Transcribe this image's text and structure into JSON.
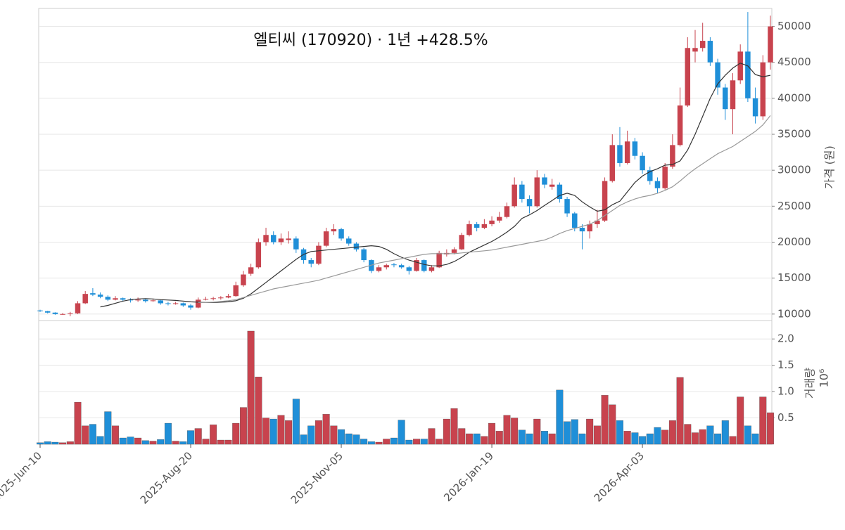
{
  "chart_data": {
    "type": "candlestick",
    "title": "엘티씨 (170920) · 1년 +428.5%",
    "ylabel": "가격 (원)",
    "grid": true,
    "up_color": "#c8434e",
    "down_color": "#1f8fd8",
    "categories": [
      "2025-Jun-10",
      null,
      null,
      null,
      null,
      null,
      null,
      null,
      null,
      null,
      null,
      null,
      null,
      null,
      null,
      null,
      null,
      null,
      null,
      null,
      "2025-Aug-20",
      null,
      null,
      null,
      null,
      null,
      null,
      null,
      null,
      null,
      null,
      null,
      null,
      null,
      null,
      null,
      null,
      null,
      null,
      null,
      "2025-Nov-05",
      null,
      null,
      null,
      null,
      null,
      null,
      null,
      null,
      null,
      null,
      null,
      null,
      null,
      null,
      null,
      null,
      null,
      null,
      null,
      "2026-Jan-19",
      null,
      null,
      null,
      null,
      null,
      null,
      null,
      null,
      null,
      null,
      null,
      null,
      null,
      null,
      null,
      null,
      null,
      null,
      null,
      "2026-Apr-03",
      null,
      null,
      null,
      null,
      null,
      null,
      null,
      null,
      null,
      null,
      null,
      null,
      null,
      null,
      null,
      null,
      null
    ],
    "open": [
      10500,
      10400,
      10200,
      10000,
      10000,
      10100,
      11500,
      12900,
      12700,
      12400,
      12000,
      12200,
      12000,
      11900,
      12000,
      11800,
      11900,
      11500,
      11400,
      11500,
      11200,
      10900,
      12000,
      12100,
      12200,
      12300,
      12500,
      14000,
      15600,
      16500,
      20000,
      21000,
      20000,
      20300,
      20500,
      19000,
      17500,
      17000,
      19500,
      21500,
      21800,
      20500,
      19800,
      19000,
      17500,
      16000,
      16500,
      16900,
      16800,
      16500,
      16000,
      17500,
      16000,
      16500,
      18300,
      18500,
      19000,
      21000,
      22500,
      22000,
      22500,
      23000,
      23500,
      25000,
      28000,
      26000,
      25000,
      29000,
      27700,
      28000,
      26000,
      24000,
      22000,
      21500,
      22500,
      23000,
      28500,
      33500,
      31000,
      34000,
      32000,
      30000,
      28500,
      27500,
      30500,
      33500,
      39000,
      46500,
      47000,
      48000,
      45000,
      41500,
      38500,
      42500,
      46500,
      40000,
      37500,
      45000
    ],
    "high": [
      10600,
      10450,
      10250,
      10150,
      10300,
      11800,
      13200,
      13600,
      13000,
      12600,
      12500,
      12300,
      12200,
      12300,
      12100,
      12100,
      12000,
      11700,
      11700,
      11600,
      11400,
      12300,
      12400,
      12400,
      12500,
      12800,
      14500,
      16000,
      17000,
      20500,
      22000,
      21500,
      21200,
      21500,
      20800,
      19200,
      17800,
      20000,
      22000,
      22500,
      22000,
      20800,
      20000,
      19200,
      17600,
      16800,
      17000,
      17100,
      17000,
      16700,
      17800,
      17600,
      16800,
      18800,
      19000,
      19300,
      21300,
      23000,
      22800,
      23200,
      23600,
      24200,
      25500,
      29000,
      28500,
      26500,
      30000,
      29500,
      28800,
      28300,
      26300,
      24200,
      22500,
      23000,
      24500,
      29000,
      35000,
      36000,
      35500,
      34500,
      32500,
      30500,
      29000,
      31000,
      35000,
      41500,
      48500,
      49500,
      50500,
      48500,
      45500,
      42000,
      43500,
      47500,
      52000,
      41500,
      46000,
      51500
    ],
    "low": [
      10300,
      10100,
      9900,
      9900,
      9700,
      10000,
      11400,
      12500,
      12200,
      11800,
      11900,
      11800,
      11600,
      11700,
      11600,
      11700,
      11300,
      11200,
      11300,
      11000,
      10600,
      10800,
      11900,
      11900,
      12000,
      12200,
      12400,
      13800,
      15300,
      16300,
      19500,
      19700,
      19600,
      19800,
      18500,
      17000,
      16500,
      16800,
      19300,
      21000,
      20200,
      19500,
      18700,
      17200,
      15700,
      15800,
      16200,
      16500,
      16300,
      15500,
      15900,
      15800,
      15800,
      16400,
      18000,
      18300,
      18900,
      20800,
      21500,
      21800,
      22200,
      22700,
      23300,
      24800,
      25500,
      24000,
      24800,
      27500,
      27300,
      25500,
      23500,
      21500,
      19000,
      20500,
      22000,
      22800,
      28300,
      30500,
      30800,
      31500,
      29500,
      28000,
      26800,
      27300,
      30200,
      33300,
      38800,
      45000,
      46500,
      44500,
      40500,
      37000,
      35000,
      42000,
      39500,
      36500,
      37000,
      44000
    ],
    "close": [
      10400,
      10200,
      10000,
      10000,
      10100,
      11500,
      12800,
      12700,
      12400,
      12000,
      12200,
      12000,
      11900,
      12000,
      11800,
      11900,
      11500,
      11400,
      11500,
      11200,
      10900,
      12000,
      12100,
      12200,
      12300,
      12500,
      14000,
      15500,
      16500,
      20000,
      21000,
      20000,
      20500,
      20500,
      19000,
      17500,
      17000,
      19500,
      21500,
      21800,
      20500,
      19800,
      19000,
      17500,
      16000,
      16500,
      16800,
      16800,
      16500,
      16000,
      17500,
      16000,
      16500,
      18500,
      18500,
      19000,
      21000,
      22500,
      22000,
      22500,
      23000,
      23500,
      25000,
      28000,
      26000,
      25000,
      29000,
      28000,
      28000,
      26000,
      24000,
      22000,
      21500,
      22500,
      23000,
      28500,
      33500,
      31000,
      34000,
      32000,
      30000,
      28500,
      27500,
      30500,
      33500,
      39000,
      47000,
      47000,
      48000,
      45000,
      41500,
      38500,
      42500,
      46500,
      40000,
      37500,
      45000,
      50000
    ],
    "moving_averages": [
      {
        "color": "#333333",
        "values": [
          null,
          null,
          null,
          null,
          null,
          null,
          null,
          null,
          11000,
          11200,
          11500,
          11800,
          12000,
          12100,
          12150,
          12100,
          12000,
          11950,
          11900,
          11800,
          11700,
          11650,
          11600,
          11600,
          11650,
          11700,
          11850,
          12200,
          12800,
          13600,
          14400,
          15200,
          16000,
          16800,
          17600,
          18300,
          18700,
          18800,
          18900,
          19000,
          19100,
          19200,
          19300,
          19400,
          19500,
          19400,
          19000,
          18400,
          17900,
          17500,
          17200,
          16900,
          16700,
          16700,
          16900,
          17300,
          17900,
          18600,
          19100,
          19600,
          20100,
          20700,
          21400,
          22200,
          23300,
          23800,
          24400,
          25100,
          25800,
          26500,
          26800,
          26500,
          25600,
          24900,
          24300,
          24500,
          25200,
          25700,
          27000,
          28300,
          29200,
          29800,
          30200,
          30700,
          30800,
          31300,
          32800,
          35000,
          37500,
          40000,
          42000,
          43200,
          44200,
          44900,
          44500,
          43300,
          43000,
          43200
        ]
      },
      {
        "color": "#999999",
        "values": [
          null,
          null,
          null,
          null,
          null,
          null,
          null,
          null,
          null,
          null,
          null,
          null,
          null,
          null,
          null,
          null,
          null,
          null,
          null,
          null,
          null,
          11600,
          11600,
          11650,
          11750,
          11850,
          12000,
          12300,
          12600,
          12900,
          13200,
          13500,
          13700,
          13900,
          14100,
          14300,
          14500,
          14700,
          15000,
          15300,
          15600,
          15900,
          16200,
          16500,
          16800,
          17100,
          17300,
          17500,
          17700,
          17900,
          18100,
          18300,
          18400,
          18400,
          18400,
          18400,
          18500,
          18600,
          18700,
          18800,
          18900,
          19100,
          19300,
          19500,
          19700,
          19900,
          20100,
          20300,
          20700,
          21200,
          21600,
          21900,
          22200,
          22500,
          23000,
          23700,
          24400,
          25100,
          25600,
          26000,
          26300,
          26500,
          26800,
          27200,
          27700,
          28500,
          29400,
          30200,
          30900,
          31600,
          32300,
          32800,
          33300,
          34000,
          34700,
          35400,
          36300,
          37600
        ]
      }
    ],
    "ylim": [
      9100,
      52500
    ],
    "yticks": [
      10000,
      15000,
      20000,
      25000,
      30000,
      35000,
      40000,
      45000,
      50000
    ],
    "volume": {
      "ylabel": "거래량",
      "offset_label": "10⁶",
      "values": [
        0.03,
        0.05,
        0.04,
        0.03,
        0.05,
        0.8,
        0.35,
        0.38,
        0.15,
        0.62,
        0.35,
        0.12,
        0.14,
        0.12,
        0.07,
        0.06,
        0.09,
        0.4,
        0.06,
        0.05,
        0.26,
        0.3,
        0.1,
        0.37,
        0.08,
        0.08,
        0.4,
        0.7,
        2.15,
        1.28,
        0.5,
        0.48,
        0.55,
        0.45,
        0.86,
        0.18,
        0.35,
        0.45,
        0.57,
        0.35,
        0.28,
        0.2,
        0.18,
        0.1,
        0.05,
        0.04,
        0.1,
        0.12,
        0.46,
        0.08,
        0.1,
        0.1,
        0.3,
        0.1,
        0.48,
        0.68,
        0.3,
        0.2,
        0.2,
        0.15,
        0.4,
        0.25,
        0.55,
        0.5,
        0.27,
        0.2,
        0.48,
        0.25,
        0.2,
        1.03,
        0.43,
        0.47,
        0.2,
        0.48,
        0.35,
        0.93,
        0.75,
        0.45,
        0.25,
        0.22,
        0.15,
        0.2,
        0.32,
        0.27,
        0.45,
        1.27,
        0.38,
        0.22,
        0.28,
        0.35,
        0.2,
        0.45,
        0.15,
        0.9,
        0.35,
        0.2,
        0.9,
        0.6
      ],
      "ylim": [
        0,
        2.35
      ],
      "yticks": [
        0.5,
        {
          "value": 1,
          "label": "1.0"
        },
        1.5,
        {
          "value": 2,
          "label": "2.0"
        }
      ]
    }
  }
}
